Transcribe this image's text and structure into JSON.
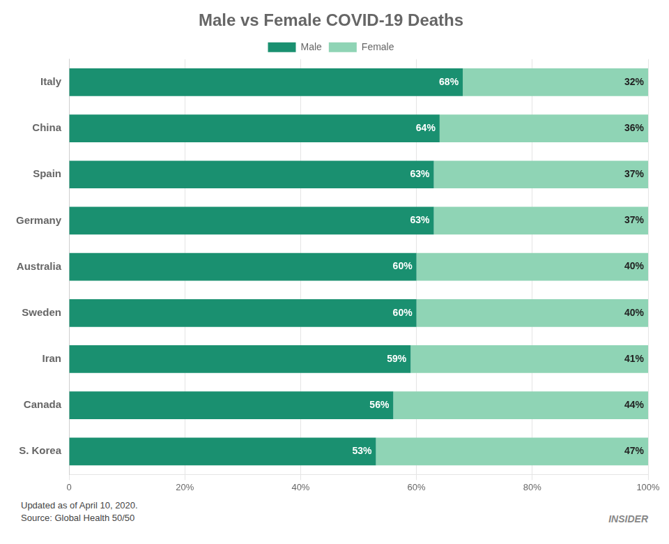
{
  "chart_data": {
    "type": "bar",
    "title": "Male vs Female COVID-19 Deaths",
    "orientation": "horizontal",
    "stacked": true,
    "categories": [
      "Italy",
      "China",
      "Spain",
      "Germany",
      "Australia",
      "Sweden",
      "Iran",
      "Canada",
      "S. Korea"
    ],
    "series": [
      {
        "name": "Male",
        "color": "#1a9070",
        "values": [
          68,
          64,
          63,
          63,
          60,
          60,
          59,
          56,
          53
        ],
        "value_labels": [
          "68%",
          "64%",
          "63%",
          "63%",
          "60%",
          "60%",
          "59%",
          "56%",
          "53%"
        ]
      },
      {
        "name": "Female",
        "color": "#8fd4b5",
        "values": [
          32,
          36,
          37,
          37,
          40,
          40,
          41,
          44,
          47
        ],
        "value_labels": [
          "32%",
          "36%",
          "37%",
          "37%",
          "40%",
          "40%",
          "41%",
          "44%",
          "47%"
        ]
      }
    ],
    "xlim": [
      0,
      100
    ],
    "xticks": [
      0,
      {
        "value": 20,
        "label": "20%"
      },
      {
        "value": 40,
        "label": "40%"
      },
      {
        "value": 60,
        "label": "60%"
      },
      {
        "value": 80,
        "label": "80%"
      },
      {
        "value": 100,
        "label": "100%"
      }
    ],
    "grid": true,
    "legend": "top",
    "data_labels": true,
    "annotations": [
      "Updated as of April 10, 2020.",
      "Source: Global Health 50/50",
      "INSIDER"
    ]
  }
}
